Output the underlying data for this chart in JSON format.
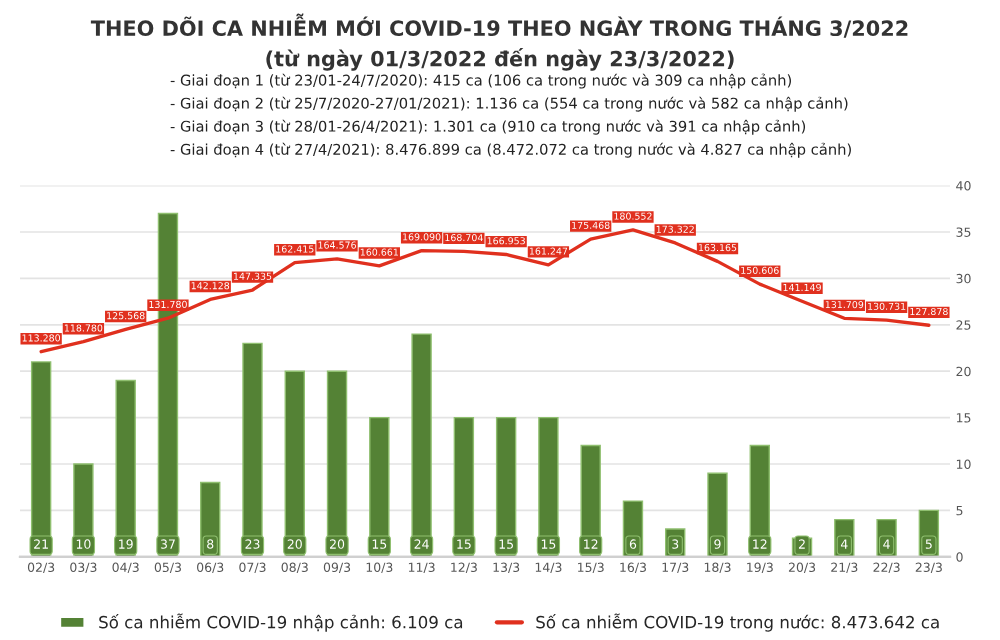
{
  "chart_data": {
    "type": "bar",
    "title": "THEO DÕI CA NHIỄM MỚI COVID-19 THEO NGÀY TRONG THÁNG 3/2022",
    "subtitle": "(từ ngày 01/3/2022 đến ngày 23/3/2022)",
    "annotations": [
      "- Giai đoạn 1 (từ 23/01-24/7/2020): 415 ca (106 ca trong nước và 309 ca nhập cảnh)",
      "- Giai đoạn 2 (từ 25/7/2020-27/01/2021): 1.136 ca (554 ca trong nước và 582 ca nhập cảnh)",
      "- Giai đoạn 3 (từ 28/01-26/4/2021): 1.301 ca (910 ca trong nước và 391 ca nhập cảnh)",
      "- Giai đoạn 4 (từ 27/4/2021): 8.476.899 ca (8.472.072 ca trong nước và 4.827 ca nhập cảnh)"
    ],
    "categories": [
      "02/3",
      "03/3",
      "04/3",
      "05/3",
      "06/3",
      "07/3",
      "08/3",
      "09/3",
      "10/3",
      "11/3",
      "12/3",
      "13/3",
      "14/3",
      "15/3",
      "16/3",
      "17/3",
      "18/3",
      "19/3",
      "20/3",
      "21/3",
      "22/3",
      "23/3"
    ],
    "series": [
      {
        "name": "Số ca nhiễm COVID-19 nhập cảnh: 6.109 ca",
        "color": "#548235",
        "data_labels": true,
        "values": [
          21,
          10,
          19,
          37,
          8,
          23,
          20,
          20,
          15,
          24,
          15,
          15,
          15,
          12,
          6,
          3,
          9,
          12,
          2,
          4,
          4,
          5
        ]
      },
      {
        "name": "Số ca nhiễm COVID-19 trong nước: 8.473.642 ca",
        "type": "line",
        "axis": "y2",
        "color": "#e0301e",
        "values": [
          113280,
          118780,
          125568,
          131780,
          142128,
          147335,
          162415,
          164576,
          160661,
          169090,
          168704,
          166953,
          161247,
          175468,
          180552,
          173322,
          163165,
          150606,
          141149,
          131709,
          130731,
          127878
        ],
        "value_labels": [
          "113.280",
          "118.780",
          "125.568",
          "131.780",
          "142.128",
          "147.335",
          "162.415",
          "164.576",
          "160.661",
          "169.090",
          "168.704",
          "166.953",
          "161.247",
          "175.468",
          "180.552",
          "173.322",
          "163.165",
          "150.606",
          "141.149",
          "131.709",
          "130.731",
          "127.878"
        ]
      }
    ],
    "ylim": [
      0,
      40
    ],
    "yticks": [
      0,
      5,
      10,
      15,
      20,
      25,
      30,
      35,
      40
    ],
    "y2lim": [
      0,
      205000
    ],
    "grid": "y",
    "legend": "bottom"
  }
}
